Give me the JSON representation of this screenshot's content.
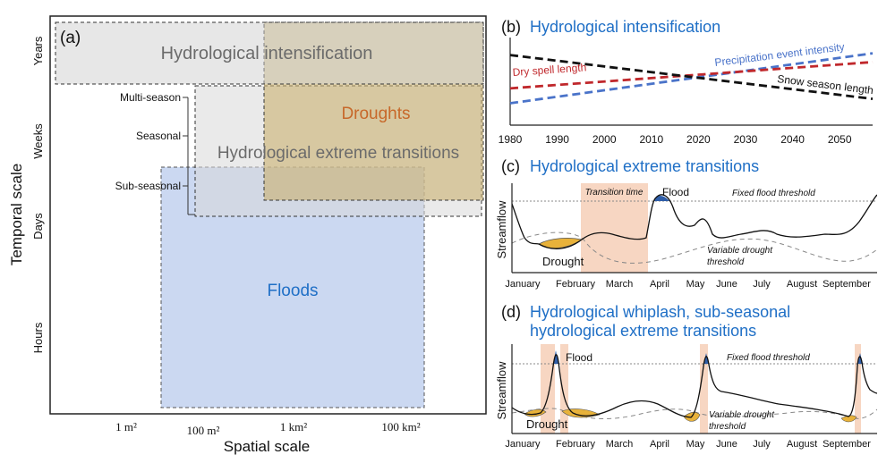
{
  "panel_a": {
    "label": "(a)",
    "y_axis_title": "Temporal scale",
    "x_axis_title": "Spatial scale",
    "y_ticks": [
      "Years",
      "Weeks",
      "Days",
      "Hours"
    ],
    "x_ticks": [
      "1 m²",
      "100 m²",
      "1 km²",
      "100 km²"
    ],
    "bracket_labels": [
      "Multi-season",
      "Seasonal",
      "Sub-seasonal"
    ],
    "regions": {
      "intensification": "Hydrological intensification",
      "droughts": "Droughts",
      "transitions": "Hydrological extreme transitions",
      "floods": "Floods"
    }
  },
  "panel_b": {
    "label": "(b)",
    "title": "Hydrological intensification",
    "line_labels": {
      "precip": "Precipitation event intensity",
      "dry": "Dry spell length",
      "snow": "Snow season length"
    }
  },
  "panel_c": {
    "label": "(c)",
    "title": "Hydrological extreme transitions",
    "y_label": "Streamflow",
    "transition_label": "Transition time",
    "flood_label": "Flood",
    "drought_label": "Drought",
    "flood_threshold": "Fixed flood threshold",
    "drought_threshold_1": "Variable drought",
    "drought_threshold_2": "threshold",
    "months": [
      "January",
      "February",
      "March",
      "April",
      "May",
      "June",
      "July",
      "August",
      "September"
    ]
  },
  "panel_d": {
    "label": "(d)",
    "title_line1": "Hydrological whiplash, sub-seasonal",
    "title_line2": "hydrological extreme transitions",
    "y_label": "Streamflow",
    "flood_label": "Flood",
    "drought_label": "Drought",
    "flood_threshold": "Fixed flood threshold",
    "drought_threshold_1": "Variable drought",
    "drought_threshold_2": "threshold",
    "months": [
      "January",
      "February",
      "March",
      "April",
      "May",
      "June",
      "July",
      "August",
      "September"
    ]
  },
  "colors": {
    "blue_text": "#1f6fc6",
    "orange_text": "#c7682a",
    "grey_text": "#6b6b6b",
    "flood_fill": "#2f5ea8",
    "drought_fill": "#e8b23a",
    "transition_fill": "#f7d6c2",
    "precip_line": "#4a73c9",
    "dry_line": "#c0282c"
  },
  "chart_data": {
    "type": "line",
    "title": "Hydrological intensification",
    "xlabel": "",
    "ylabel": "",
    "x": [
      1980,
      1990,
      2000,
      2010,
      2020,
      2030,
      2040,
      2050
    ],
    "xlim": [
      1980,
      2057
    ],
    "series": [
      {
        "name": "Precipitation event intensity",
        "trend": "increasing",
        "start": 0.25,
        "end": 0.82
      },
      {
        "name": "Dry spell length",
        "trend": "increasing",
        "start": 0.42,
        "end": 0.72
      },
      {
        "name": "Snow season length",
        "trend": "decreasing",
        "start": 0.8,
        "end": 0.3
      }
    ]
  }
}
